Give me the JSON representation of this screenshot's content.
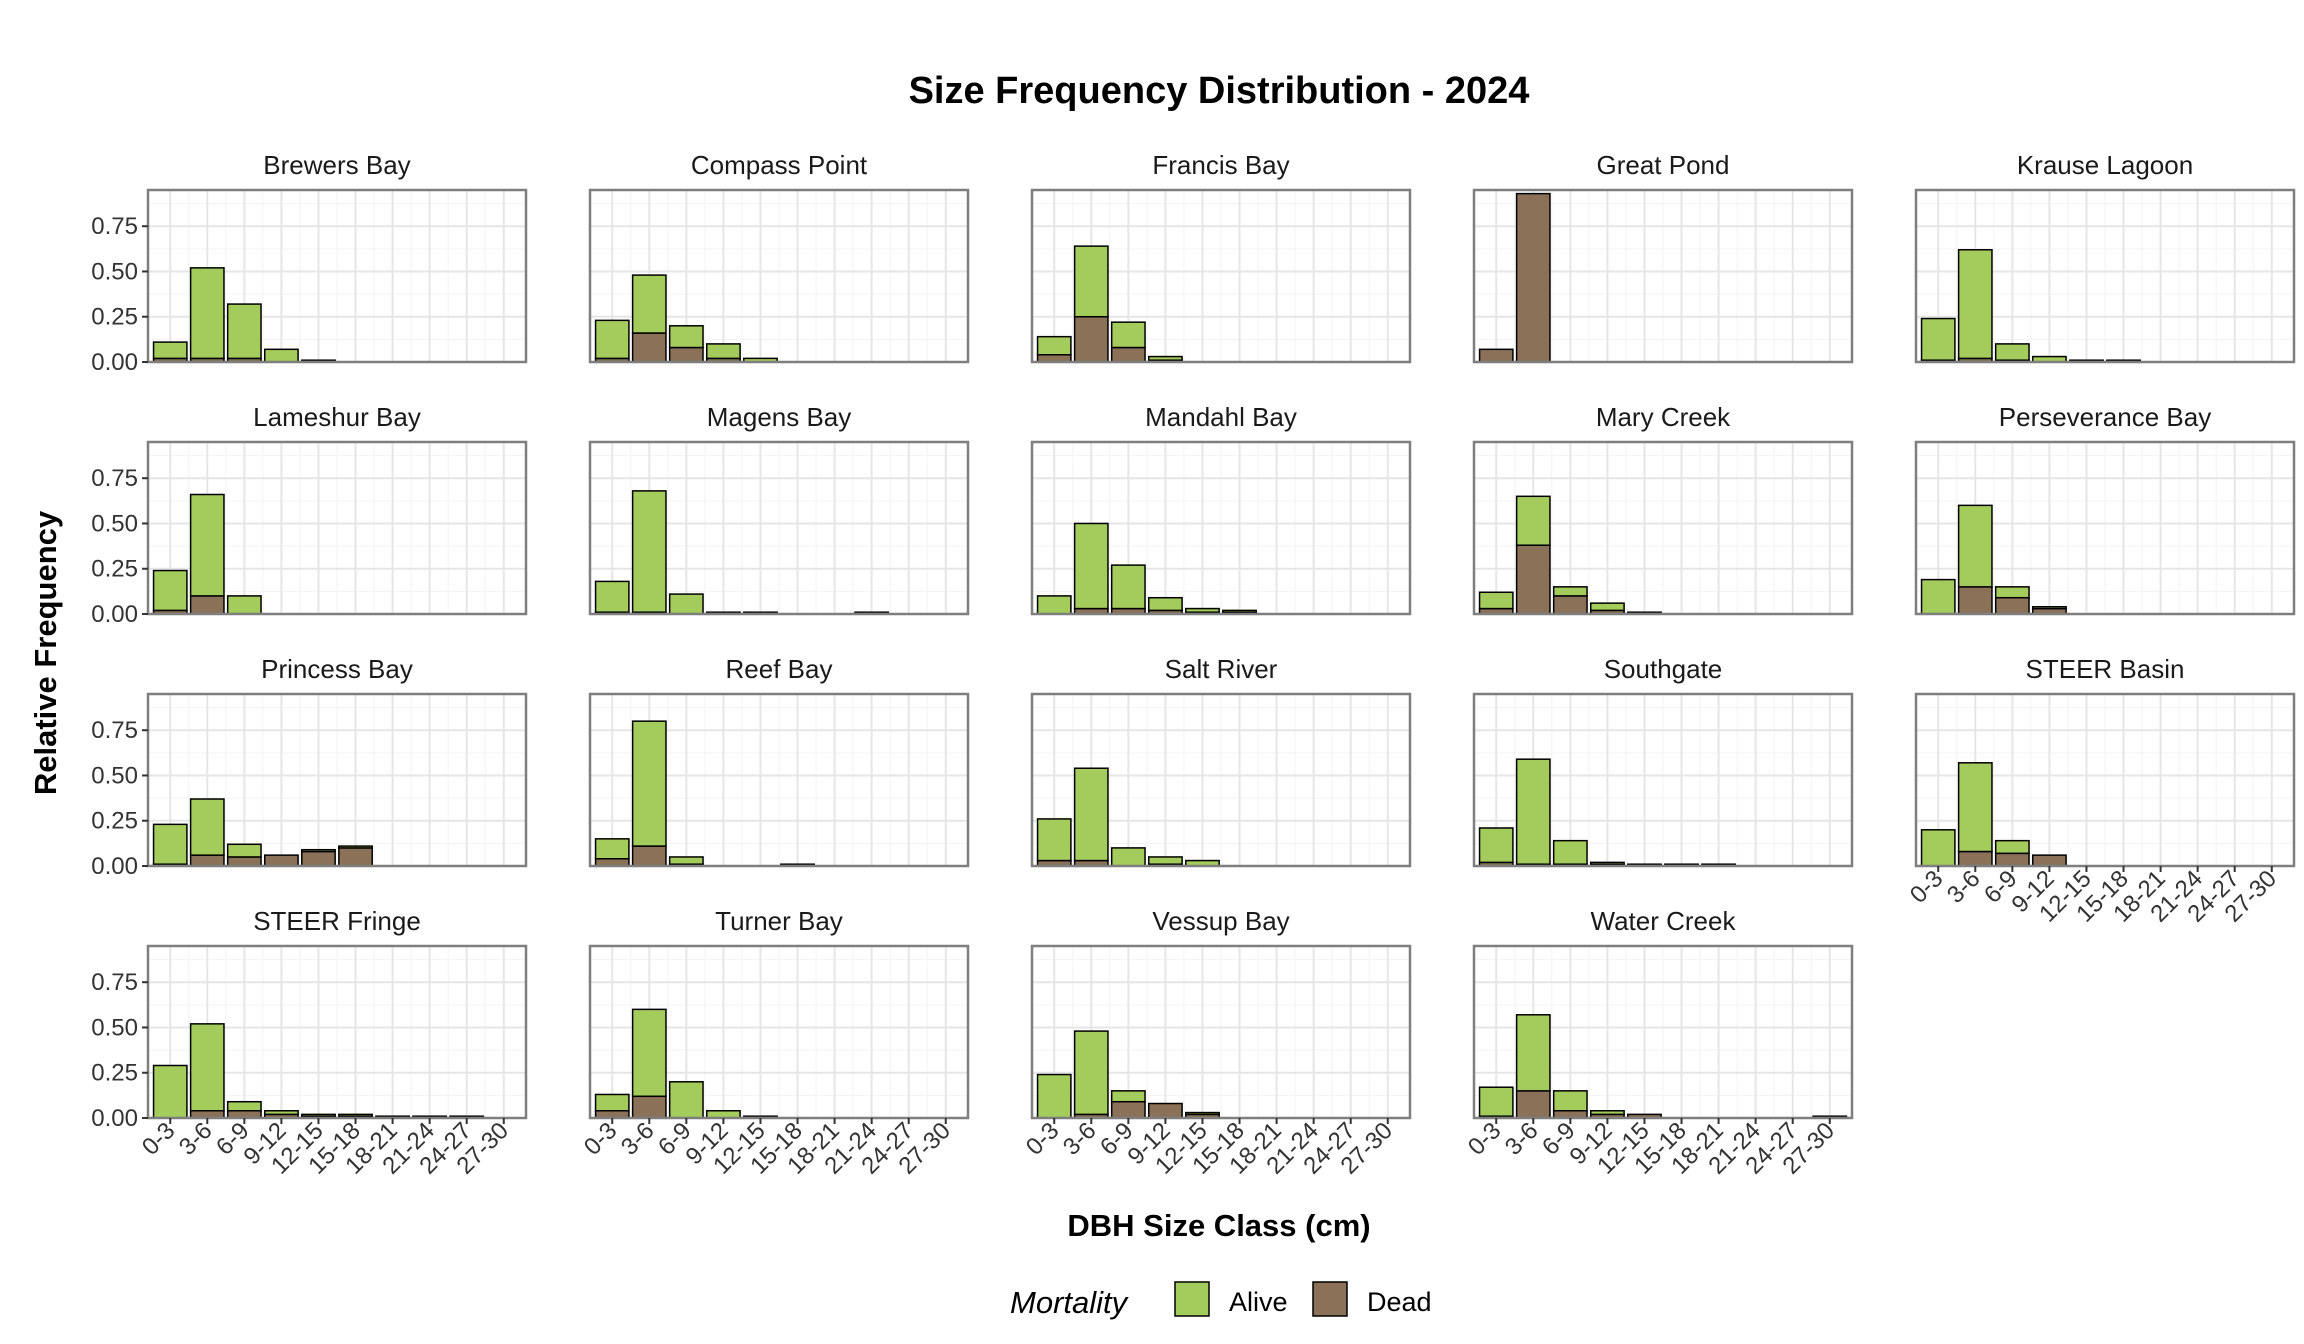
{
  "chart_data": {
    "type": "bar",
    "title": "Size Frequency Distribution - 2024",
    "xlabel": "DBH Size Class (cm)",
    "ylabel": "Relative Frequency",
    "ylim": [
      0,
      0.95
    ],
    "yticks": [
      "0.00",
      "0.25",
      "0.50",
      "0.75"
    ],
    "ytick_values": [
      0,
      0.25,
      0.5,
      0.75
    ],
    "categories": [
      "0-3",
      "3-6",
      "6-9",
      "9-12",
      "12-15",
      "15-18",
      "18-21",
      "21-24",
      "24-27",
      "27-30"
    ],
    "stacked": true,
    "grid": true,
    "legend": {
      "title": "Mortality",
      "placement": "bottom",
      "entries": [
        {
          "name": "Alive",
          "color": "#a3cc5c"
        },
        {
          "name": "Dead",
          "color": "#8a7157"
        }
      ]
    },
    "panels": [
      {
        "name": "Brewers Bay",
        "alive": [
          0.09,
          0.5,
          0.3,
          0.07,
          0.01,
          0,
          0,
          0,
          0,
          0
        ],
        "dead": [
          0.02,
          0.02,
          0.02,
          0,
          0,
          0,
          0,
          0,
          0,
          0
        ]
      },
      {
        "name": "Compass Point",
        "alive": [
          0.21,
          0.32,
          0.12,
          0.08,
          0.02,
          0,
          0,
          0,
          0,
          0
        ],
        "dead": [
          0.02,
          0.16,
          0.08,
          0.02,
          0,
          0,
          0,
          0,
          0,
          0
        ]
      },
      {
        "name": "Francis Bay",
        "alive": [
          0.1,
          0.39,
          0.14,
          0.02,
          0,
          0,
          0,
          0,
          0,
          0
        ],
        "dead": [
          0.04,
          0.25,
          0.08,
          0.01,
          0,
          0,
          0,
          0,
          0,
          0
        ]
      },
      {
        "name": "Great Pond",
        "alive": [
          0,
          0,
          0,
          0,
          0,
          0,
          0,
          0,
          0,
          0
        ],
        "dead": [
          0.07,
          0.93,
          0,
          0,
          0,
          0,
          0,
          0,
          0,
          0
        ]
      },
      {
        "name": "Krause Lagoon",
        "alive": [
          0.23,
          0.6,
          0.09,
          0.03,
          0.01,
          0.01,
          0,
          0,
          0,
          0
        ],
        "dead": [
          0.01,
          0.02,
          0.01,
          0,
          0,
          0,
          0,
          0,
          0,
          0
        ]
      },
      {
        "name": "Lameshur Bay",
        "alive": [
          0.22,
          0.56,
          0.1,
          0,
          0,
          0,
          0,
          0,
          0,
          0
        ],
        "dead": [
          0.02,
          0.1,
          0,
          0,
          0,
          0,
          0,
          0,
          0,
          0
        ]
      },
      {
        "name": "Magens Bay",
        "alive": [
          0.17,
          0.67,
          0.11,
          0.01,
          0.01,
          0,
          0,
          0.01,
          0,
          0
        ],
        "dead": [
          0.01,
          0.01,
          0,
          0,
          0,
          0,
          0,
          0,
          0,
          0
        ]
      },
      {
        "name": "Mandahl Bay",
        "alive": [
          0.1,
          0.47,
          0.24,
          0.07,
          0.02,
          0.01,
          0,
          0,
          0,
          0
        ],
        "dead": [
          0,
          0.03,
          0.03,
          0.02,
          0.01,
          0.01,
          0,
          0,
          0,
          0
        ]
      },
      {
        "name": "Mary Creek",
        "alive": [
          0.09,
          0.27,
          0.05,
          0.04,
          0.01,
          0,
          0,
          0,
          0,
          0
        ],
        "dead": [
          0.03,
          0.38,
          0.1,
          0.02,
          0,
          0,
          0,
          0,
          0,
          0
        ]
      },
      {
        "name": "Perseverance Bay",
        "alive": [
          0.19,
          0.45,
          0.06,
          0.01,
          0,
          0,
          0,
          0,
          0,
          0
        ],
        "dead": [
          0,
          0.15,
          0.09,
          0.03,
          0,
          0,
          0,
          0,
          0,
          0
        ]
      },
      {
        "name": "Princess Bay",
        "alive": [
          0.22,
          0.31,
          0.07,
          0,
          0.01,
          0.01,
          0,
          0,
          0,
          0
        ],
        "dead": [
          0.01,
          0.06,
          0.05,
          0.06,
          0.08,
          0.1,
          0,
          0,
          0,
          0
        ]
      },
      {
        "name": "Reef Bay",
        "alive": [
          0.11,
          0.69,
          0.04,
          0,
          0,
          0.01,
          0,
          0,
          0,
          0
        ],
        "dead": [
          0.04,
          0.11,
          0.01,
          0,
          0,
          0,
          0,
          0,
          0,
          0
        ]
      },
      {
        "name": "Salt River",
        "alive": [
          0.23,
          0.51,
          0.1,
          0.04,
          0.03,
          0,
          0,
          0,
          0,
          0
        ],
        "dead": [
          0.03,
          0.03,
          0,
          0.01,
          0,
          0,
          0,
          0,
          0,
          0
        ]
      },
      {
        "name": "Southgate",
        "alive": [
          0.19,
          0.58,
          0.13,
          0.01,
          0,
          0,
          0,
          0,
          0,
          0
        ],
        "dead": [
          0.02,
          0.01,
          0.01,
          0.01,
          0.01,
          0.01,
          0.01,
          0,
          0,
          0
        ]
      },
      {
        "name": "STEER Basin",
        "alive": [
          0.2,
          0.49,
          0.07,
          0,
          0,
          0,
          0,
          0,
          0,
          0
        ],
        "dead": [
          0,
          0.08,
          0.07,
          0.06,
          0,
          0,
          0,
          0,
          0,
          0
        ]
      },
      {
        "name": "STEER Fringe",
        "alive": [
          0.29,
          0.48,
          0.05,
          0.02,
          0.01,
          0.01,
          0,
          0,
          0,
          0
        ],
        "dead": [
          0,
          0.04,
          0.04,
          0.02,
          0.01,
          0.01,
          0.01,
          0.01,
          0.01,
          0
        ]
      },
      {
        "name": "Turner Bay",
        "alive": [
          0.09,
          0.48,
          0.2,
          0.04,
          0,
          0,
          0,
          0,
          0,
          0
        ],
        "dead": [
          0.04,
          0.12,
          0,
          0,
          0.01,
          0,
          0,
          0,
          0,
          0
        ]
      },
      {
        "name": "Vessup Bay",
        "alive": [
          0.24,
          0.46,
          0.06,
          0,
          0.01,
          0,
          0,
          0,
          0,
          0
        ],
        "dead": [
          0,
          0.02,
          0.09,
          0.08,
          0.02,
          0,
          0,
          0,
          0,
          0
        ]
      },
      {
        "name": "Water Creek",
        "alive": [
          0.16,
          0.42,
          0.11,
          0.02,
          0,
          0,
          0,
          0,
          0,
          0
        ],
        "dead": [
          0.01,
          0.15,
          0.04,
          0.02,
          0.02,
          0,
          0,
          0,
          0,
          0.01
        ]
      }
    ]
  }
}
